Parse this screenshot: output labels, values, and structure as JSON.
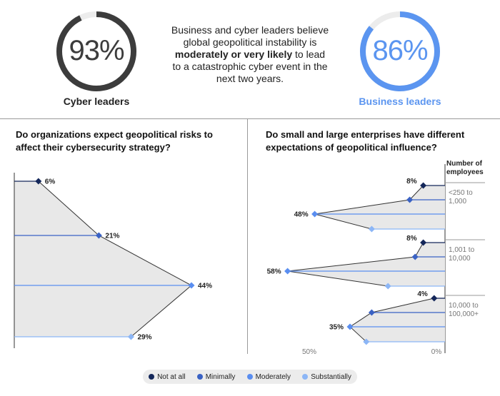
{
  "header": {
    "left": {
      "value": "93%",
      "percent": 93,
      "caption": "Cyber leaders",
      "color": "#3c3c3c"
    },
    "right": {
      "value": "86%",
      "percent": 86,
      "caption": "Business leaders",
      "color": "#5b95f0"
    },
    "statement": {
      "part1": "Business and cyber leaders believe global geopolitical instability is ",
      "bold": "moderately or very likely",
      "part2": " to lead to a catastrophic cyber event in the next two years."
    }
  },
  "colors": {
    "not_at_all": "#14275a",
    "minimally": "#3a62c4",
    "moderately": "#5a8ef0",
    "substantially": "#8cb6f6",
    "fill": "#e8e8e8",
    "gray_text": "#777777",
    "label_accent": "#5b95f0"
  },
  "chart_data": [
    {
      "type": "area",
      "title": "Do organizations expect geopolitical risks to affect their cybersecurity strategy?",
      "categories": [
        "Not at all",
        "Minimally",
        "Moderately",
        "Substantially"
      ],
      "values": [
        6,
        21,
        44,
        29
      ],
      "labels": [
        "6%",
        "21%",
        "44%",
        "29%"
      ],
      "xlim": [
        0,
        50
      ]
    },
    {
      "type": "area",
      "title": "Do small and large enterprises have different expectations of geopolitical influence?",
      "group_axis_title": "Number of employees",
      "categories": [
        "Not at all",
        "Minimally",
        "Moderately",
        "Substantially"
      ],
      "groups": [
        {
          "name": "<250 to 1,000",
          "values": [
            8,
            13,
            48,
            27
          ],
          "labels": {
            "0": "8%",
            "2": "48%"
          }
        },
        {
          "name": "1,001 to 10,000",
          "values": [
            8,
            11,
            58,
            21
          ],
          "labels": {
            "0": "8%",
            "2": "58%"
          }
        },
        {
          "name": "10,000 to 100,000+",
          "values": [
            4,
            27,
            35,
            29
          ],
          "labels": {
            "0": "4%",
            "2": "35%"
          }
        }
      ],
      "x_ticks": [
        "50%",
        "0%"
      ],
      "xlim": [
        0,
        50
      ]
    }
  ],
  "legend": [
    "Not at all",
    "Minimally",
    "Moderately",
    "Substantially"
  ]
}
